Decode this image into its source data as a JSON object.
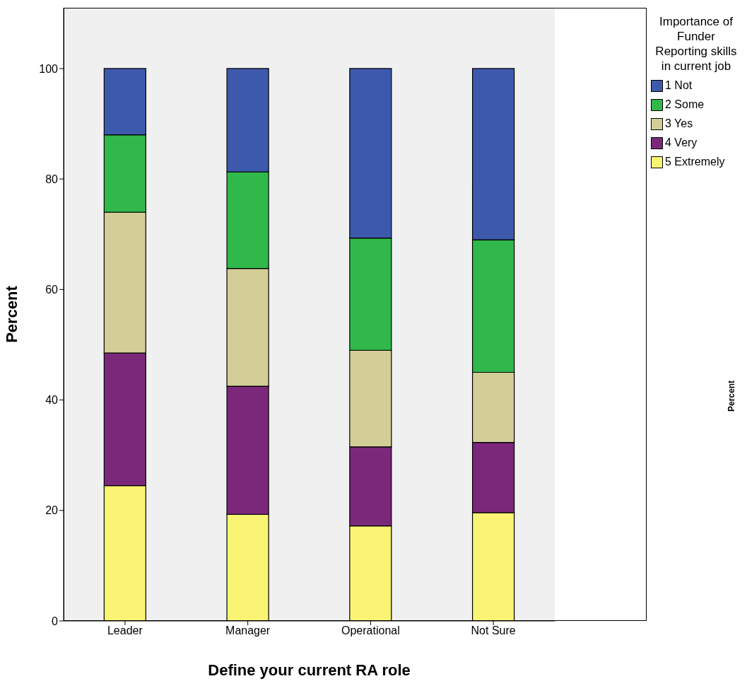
{
  "chart_data": {
    "type": "bar",
    "stacked": true,
    "xlabel": "Define your current RA role",
    "ylabel": "Percent",
    "legend_title": "Importance of Funder Reporting skills in current job",
    "legend": "top right",
    "categories": [
      "Leader",
      "Manager",
      "Operational",
      "Not Sure"
    ],
    "series": [
      {
        "name": "5 Extremely",
        "color": "#f9f473",
        "values": [
          24.5,
          19.3,
          17.2,
          19.6
        ]
      },
      {
        "name": "4 Very",
        "color": "#7b287b",
        "values": [
          24,
          23.2,
          14.3,
          12.7
        ]
      },
      {
        "name": "3 Yes",
        "color": "#d3ce97",
        "values": [
          25.5,
          21.3,
          17.5,
          12.7
        ]
      },
      {
        "name": "2 Some",
        "color": "#30b84a",
        "values": [
          14,
          17.5,
          20.3,
          24
        ]
      },
      {
        "name": "1 Not",
        "color": "#3d59ab",
        "values": [
          12,
          18.7,
          30.7,
          31
        ]
      }
    ],
    "ylim": [
      0,
      111
    ],
    "yticks": [
      0,
      20,
      40,
      60,
      80,
      100
    ],
    "annotations": [
      "Percent"
    ]
  }
}
